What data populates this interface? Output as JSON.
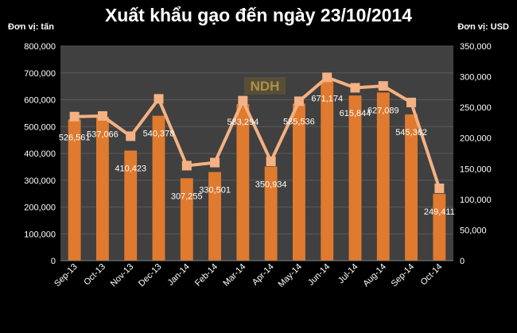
{
  "chart_data": {
    "type": "bar",
    "title": "Xuất khẩu gạo đến ngày 23/10/2014",
    "ylabel": "Đơn vị: tấn",
    "y2label": "Đơn vị: USD",
    "categories": [
      "Sep-13",
      "Oct-13",
      "Nov-13",
      "Dec-13",
      "Jan-14",
      "Feb-14",
      "Mar-14",
      "Apr-14",
      "May-14",
      "Jun-14",
      "Jul-14",
      "Aug-14",
      "Sep-14",
      "Oct-14"
    ],
    "series": [
      {
        "type": "bar",
        "axis": "left",
        "values": [
          526561,
          537066,
          410423,
          540378,
          307255,
          330501,
          583294,
          350934,
          585536,
          671174,
          615844,
          627089,
          545362,
          249411
        ],
        "labels": [
          "526,561",
          "537,066",
          "410,423",
          "540,378",
          "307,255",
          "330,501",
          "583,294",
          "350,934",
          "585,536",
          "671,174",
          "615,844",
          "627,089",
          "545,362",
          "249,411"
        ],
        "color": "#E07A2E"
      },
      {
        "type": "line",
        "axis": "right",
        "values": [
          235000,
          236000,
          203000,
          264000,
          155000,
          160000,
          261000,
          162000,
          260000,
          299000,
          282000,
          285000,
          258000,
          118000
        ],
        "color": "#F4B183"
      }
    ],
    "ylim": [
      0,
      800000
    ],
    "y2lim": [
      0,
      350000
    ],
    "yticks": [
      "0",
      "100,000",
      "200,000",
      "300,000",
      "400,000",
      "500,000",
      "600,000",
      "700,000",
      "800,000"
    ],
    "y2ticks": [
      "0",
      "50,000",
      "100,000",
      "150,000",
      "200,000",
      "250,000",
      "300,000",
      "350,000"
    ],
    "grid": true,
    "watermark": "NDH",
    "plot_bg": "#404040"
  }
}
